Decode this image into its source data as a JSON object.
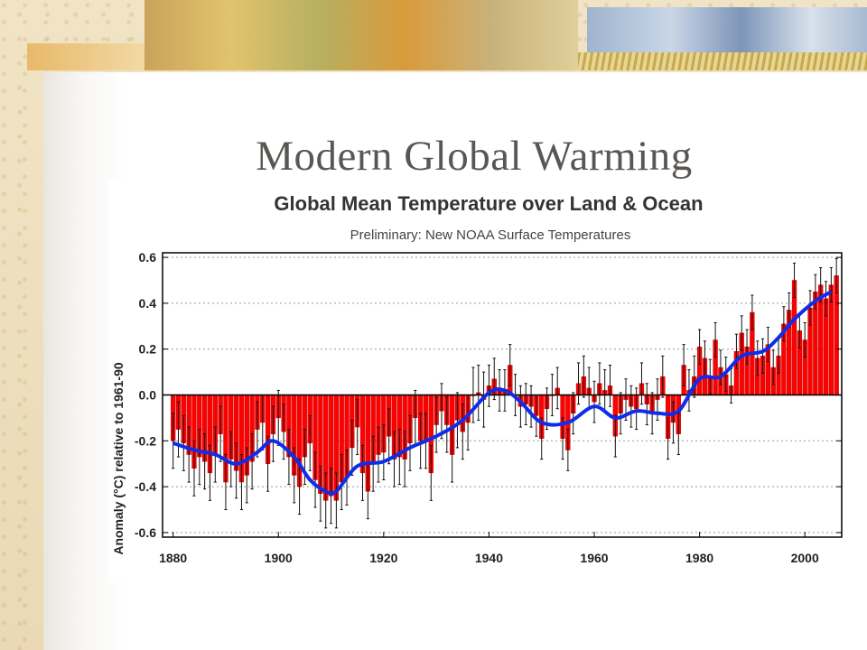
{
  "slide": {
    "title": "Modern Global Warming"
  },
  "colors": {
    "bar": "#ff0000",
    "smooth_line": "#0f2de8",
    "error_bar": "#111111"
  },
  "chart_data": {
    "type": "bar",
    "title": "Global Mean Temperature over Land & Ocean",
    "subtitle": "Preliminary: New NOAA Surface Temperatures",
    "ylabel": "Anomaly (°C) relative to 1961-90",
    "xlabel": "",
    "xlim": [
      1878,
      2007
    ],
    "ylim": [
      -0.62,
      0.62
    ],
    "x_ticks": [
      1880,
      1900,
      1920,
      1940,
      1960,
      1980,
      2000
    ],
    "y_ticks": [
      0.6,
      0.4,
      0.2,
      0.0,
      -0.2,
      -0.4,
      -0.6
    ],
    "y_tick_labels": [
      "0.6",
      "0.4",
      "0.2",
      "0.0",
      "-0.2",
      "-0.4",
      "-0.6"
    ],
    "grid": true,
    "series": [
      {
        "type": "bar",
        "x_start": 1880,
        "values": [
          -0.2,
          -0.15,
          -0.21,
          -0.26,
          -0.32,
          -0.27,
          -0.29,
          -0.34,
          -0.26,
          -0.17,
          -0.38,
          -0.28,
          -0.33,
          -0.38,
          -0.35,
          -0.29,
          -0.15,
          -0.12,
          -0.3,
          -0.17,
          -0.1,
          -0.16,
          -0.27,
          -0.35,
          -0.4,
          -0.27,
          -0.21,
          -0.37,
          -0.43,
          -0.46,
          -0.44,
          -0.46,
          -0.38,
          -0.36,
          -0.23,
          -0.14,
          -0.34,
          -0.42,
          -0.3,
          -0.26,
          -0.25,
          -0.18,
          -0.28,
          -0.27,
          -0.28,
          -0.21,
          -0.1,
          -0.2,
          -0.2,
          -0.34,
          -0.13,
          -0.07,
          -0.13,
          -0.26,
          -0.11,
          -0.16,
          -0.12,
          0.0,
          0.01,
          -0.02,
          0.04,
          0.07,
          0.02,
          0.02,
          0.13,
          0.0,
          -0.05,
          -0.04,
          -0.05,
          -0.09,
          -0.19,
          -0.06,
          0.0,
          0.03,
          -0.19,
          -0.24,
          -0.08,
          0.05,
          0.08,
          0.03,
          -0.03,
          0.05,
          0.02,
          0.04,
          -0.18,
          -0.08,
          -0.02,
          -0.05,
          -0.06,
          0.05,
          -0.04,
          -0.08,
          -0.02,
          0.08,
          -0.19,
          -0.12,
          -0.17,
          0.13,
          0.02,
          0.08,
          0.21,
          0.16,
          0.08,
          0.24,
          0.12,
          0.09,
          0.04,
          0.19,
          0.27,
          0.21,
          0.36,
          0.16,
          0.17,
          0.22,
          0.12,
          0.17,
          0.31,
          0.37,
          0.5,
          0.28,
          0.24,
          0.38,
          0.45,
          0.48,
          0.42,
          0.48,
          0.52
        ]
      },
      {
        "type": "line",
        "x": [
          1880,
          1884,
          1888,
          1892,
          1896,
          1899,
          1903,
          1906,
          1909,
          1911,
          1915,
          1920,
          1925,
          1930,
          1935,
          1940,
          1943,
          1946,
          1950,
          1955,
          1960,
          1964,
          1968,
          1972,
          1976,
          1980,
          1984,
          1988,
          1992,
          1995,
          1998,
          2002,
          2005
        ],
        "y": [
          -0.21,
          -0.24,
          -0.26,
          -0.3,
          -0.25,
          -0.2,
          -0.27,
          -0.37,
          -0.42,
          -0.42,
          -0.31,
          -0.29,
          -0.23,
          -0.18,
          -0.11,
          0.01,
          0.02,
          -0.03,
          -0.12,
          -0.12,
          -0.05,
          -0.1,
          -0.07,
          -0.08,
          -0.07,
          0.07,
          0.08,
          0.17,
          0.19,
          0.25,
          0.33,
          0.41,
          0.45
        ]
      }
    ]
  }
}
